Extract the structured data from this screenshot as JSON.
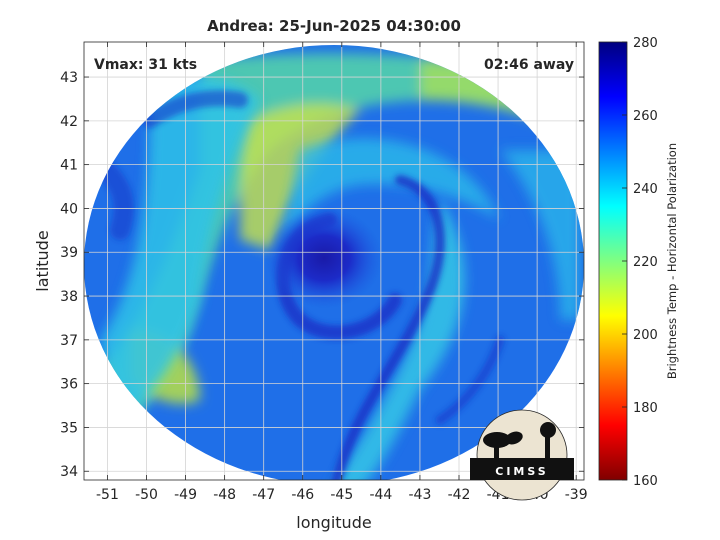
{
  "chart_data": {
    "type": "heatmap",
    "title": "Andrea: 25-Jun-2025 04:30:00",
    "xlabel": "longitude",
    "ylabel": "latitude",
    "annotations": {
      "vmax": "Vmax: 31 kts",
      "time_away": "02:46 away"
    },
    "xlim": [
      -51.6,
      -38.8
    ],
    "ylim": [
      33.8,
      43.8
    ],
    "x_ticks": [
      -51,
      -50,
      -49,
      -48,
      -47,
      -46,
      -45,
      -44,
      -43,
      -42,
      -41,
      -40,
      -39
    ],
    "y_ticks": [
      34,
      35,
      36,
      37,
      38,
      39,
      40,
      41,
      42,
      43
    ],
    "grid": true,
    "colorbar": {
      "label": "Brightness Temp - Horizontal Polarization",
      "min": 160,
      "max": 280,
      "ticks": [
        160,
        180,
        200,
        220,
        240,
        260,
        280
      ],
      "colormap": "jet"
    },
    "storm_center": {
      "lon": -44.8,
      "lat": 38.9
    },
    "logo_text": "CIMSS"
  }
}
